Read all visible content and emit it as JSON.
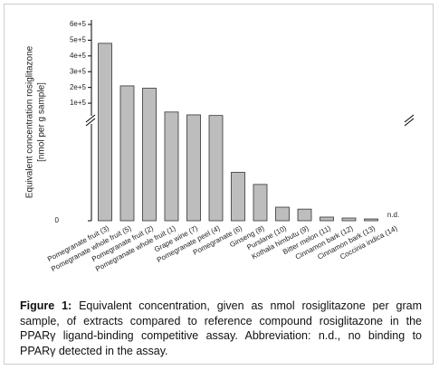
{
  "chart_data": {
    "type": "bar",
    "axis_break": true,
    "y_label": [
      "Equivalent concentration rosiglitazone",
      "[nmol per g sample]"
    ],
    "categories": [
      "Pomegranate fruit (3)",
      "Pomegranate whole fruit (5)",
      "Pomegranate fruit (2)",
      "Pomegranate whole fruit (1)",
      "Grape wine (7)",
      "Pomegranate peel (4)",
      "Pomegranate (6)",
      "Ginseng (8)",
      "Purslane (10)",
      "Kothala himbutu (9)",
      "Bitter melon (11)",
      "Cinnamon bark (12)",
      "Cinnamon bark (13)",
      "Coccinia indica (14)"
    ],
    "values": [
      480000,
      210000,
      195000,
      44000,
      26000,
      22000,
      10000,
      7500,
      2800,
      2400,
      750,
      560,
      370,
      null
    ],
    "value_labels": [
      null,
      null,
      null,
      null,
      null,
      null,
      null,
      null,
      null,
      null,
      null,
      null,
      null,
      "n.d."
    ],
    "color": "#bdbdbd",
    "ylim_lower": [
      0,
      20000
    ],
    "ylim_upper": [
      20000,
      600000
    ],
    "yticks": [
      0,
      {
        "value": 100000,
        "label": "1e+5"
      },
      {
        "value": 200000,
        "label": "2e+5"
      },
      {
        "value": 300000,
        "label": "3e+5"
      },
      {
        "value": 400000,
        "label": "4e+5"
      },
      {
        "value": 500000,
        "label": "5e+5"
      },
      {
        "value": 600000,
        "label": "6e+5"
      }
    ]
  },
  "caption": {
    "label": "Figure 1:",
    "text": "Equivalent concentration, given as nmol rosiglitazone per gram sample, of extracts compared to reference compound rosiglitazone in the PPARγ ligand-binding competitive assay. Abbreviation: n.d., no binding to PPARγ detected in the assay."
  }
}
